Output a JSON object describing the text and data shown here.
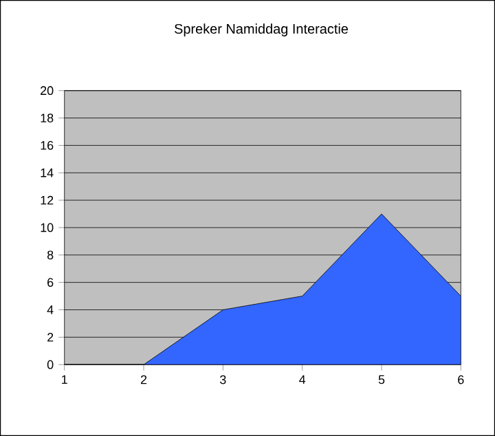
{
  "chart_data": {
    "type": "area",
    "title": "Spreker Namiddag Interactie",
    "x": [
      1,
      2,
      3,
      4,
      5,
      6
    ],
    "values": [
      0,
      0,
      4,
      5,
      11,
      5
    ],
    "color": "#3366ff",
    "xlim": [
      1,
      6
    ],
    "xticks": [
      1,
      2,
      3,
      4,
      5,
      6
    ],
    "ylim": [
      0,
      20
    ],
    "yticks": [
      0,
      2,
      4,
      6,
      8,
      10,
      12,
      14,
      16,
      18,
      20
    ],
    "grid": "y"
  }
}
